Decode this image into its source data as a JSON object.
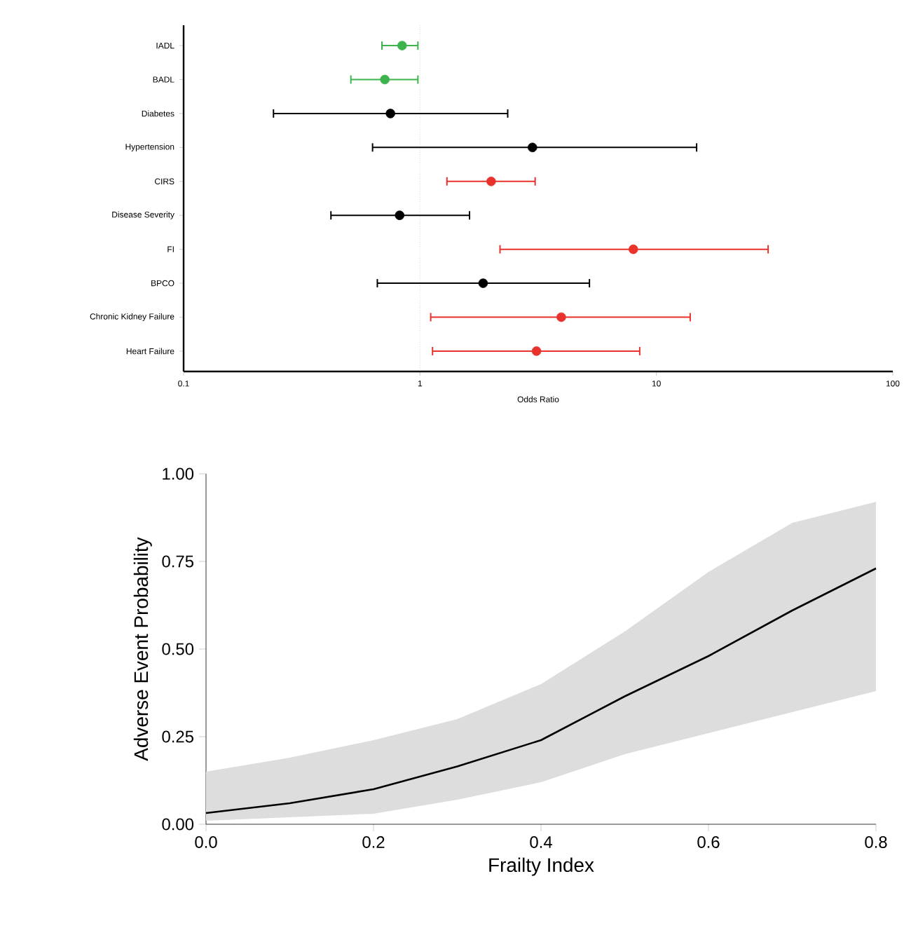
{
  "chart_data": [
    {
      "type": "scatter",
      "orientation": "horizontal",
      "log": "x",
      "xlabel": "Odds Ratio",
      "categories": [
        "IADL",
        "BADL",
        "Diabetes",
        "Hypertension",
        "CIRS",
        "Disease Severity",
        "FI",
        "BPCO",
        "Chronic Kidney Failure",
        "Heart Failure"
      ],
      "values": [
        0.84,
        0.71,
        0.75,
        2.99,
        2.0,
        0.82,
        7.99,
        1.85,
        3.96,
        3.11
      ],
      "errors": [
        [
          0.69,
          0.98
        ],
        [
          0.51,
          0.98
        ],
        [
          0.24,
          2.35
        ],
        [
          0.63,
          14.8
        ],
        [
          1.3,
          3.07
        ],
        [
          0.42,
          1.62
        ],
        [
          2.18,
          29.7
        ],
        [
          0.66,
          5.21
        ],
        [
          1.11,
          13.9
        ],
        [
          1.13,
          8.5
        ]
      ],
      "colors": [
        "#3cb44b",
        "#3cb44b",
        "#000000",
        "#000000",
        "#e8322b",
        "#000000",
        "#e8322b",
        "#000000",
        "#e8322b",
        "#e8322b"
      ],
      "marker": "circle",
      "xlim": [
        0.1,
        100
      ],
      "xticks": [
        0.1,
        1,
        10,
        100
      ],
      "ref_lines": [
        {
          "axis": "x",
          "value": 1,
          "color": "#c8c8c8",
          "line_style": "dotted"
        }
      ]
    },
    {
      "type": "line",
      "xlabel": "Frailty Index",
      "ylabel": "Adverse Event Probability",
      "xlim": [
        0,
        0.8
      ],
      "ylim": [
        0,
        1
      ],
      "xticks": [
        {
          "value": 0,
          "label": "0.0"
        },
        {
          "value": 0.2,
          "label": "0.2"
        },
        {
          "value": 0.4,
          "label": "0.4"
        },
        {
          "value": 0.6,
          "label": "0.6"
        },
        {
          "value": 0.8,
          "label": "0.8"
        }
      ],
      "yticks": [
        {
          "value": 0,
          "label": "0.00"
        },
        {
          "value": 0.25,
          "label": "0.25"
        },
        {
          "value": 0.5,
          "label": "0.50"
        },
        {
          "value": 0.75,
          "label": "0.75"
        },
        {
          "value": 1,
          "label": "1.00"
        }
      ],
      "x": [
        0,
        0.1,
        0.2,
        0.3,
        0.4,
        0.5,
        0.6,
        0.7,
        0.8
      ],
      "series": [
        {
          "color": "#000000",
          "values": [
            0.032,
            0.06,
            0.1,
            0.165,
            0.24,
            0.365,
            0.48,
            0.61,
            0.73
          ],
          "lower": [
            0.01,
            0.02,
            0.03,
            0.07,
            0.12,
            0.2,
            0.26,
            0.32,
            0.38
          ],
          "upper": [
            0.15,
            0.19,
            0.24,
            0.3,
            0.4,
            0.55,
            0.72,
            0.86,
            0.92
          ]
        }
      ]
    }
  ]
}
